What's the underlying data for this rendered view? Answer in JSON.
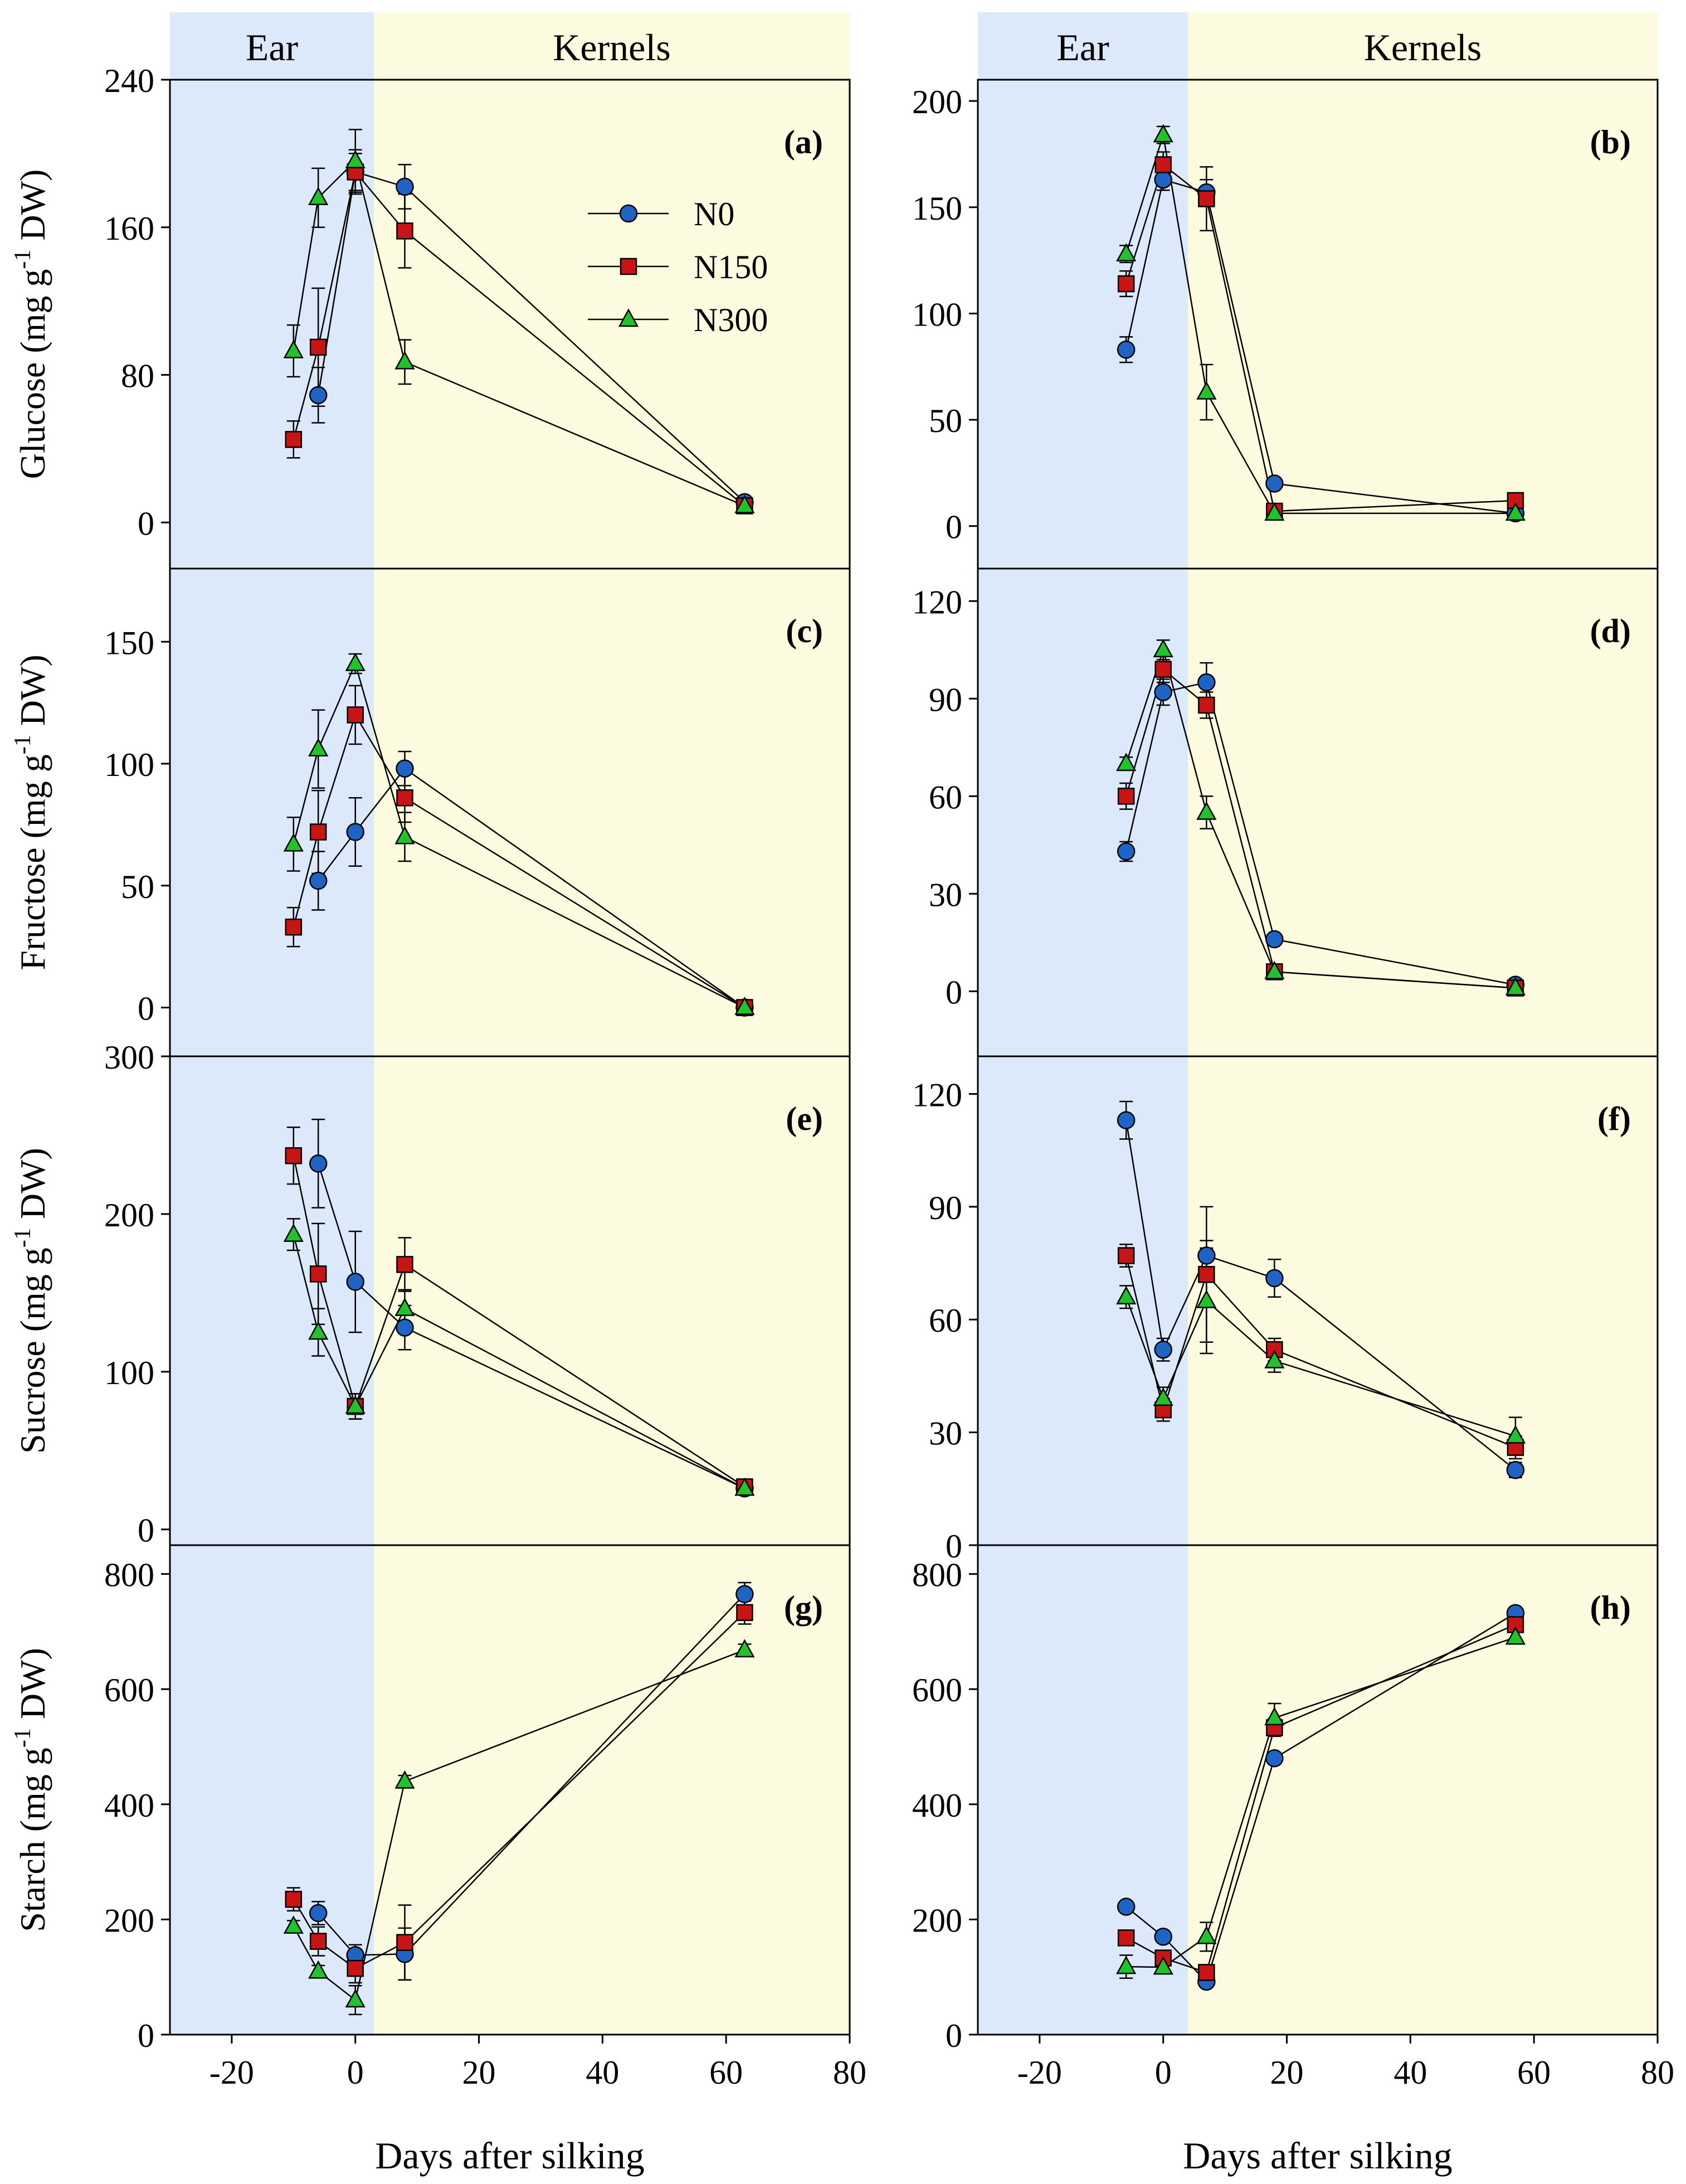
{
  "figure": {
    "region_labels": {
      "ear": "Ear",
      "kernels": "Kernels"
    },
    "x_axis_label": "Days after silking",
    "colors": {
      "ear_region": "#dbe9fb",
      "kernels_region": "#fcfbdf",
      "N0": "#1f63c4",
      "N150": "#c81414",
      "N300": "#22c32a"
    },
    "legend": [
      "N0",
      "N150",
      "N300"
    ],
    "markers": {
      "N0": "circle",
      "N150": "square",
      "N300": "triangle"
    }
  },
  "chart_data": [
    {
      "panel": "(a)",
      "type": "line",
      "column": "left",
      "row": 0,
      "ylabel": "Glucose (mg g-1 DW)",
      "xlim": [
        -30,
        80
      ],
      "ylim": [
        -25,
        240
      ],
      "xticks": [
        -20,
        0,
        20,
        40,
        60,
        80
      ],
      "yticks": [
        0,
        80,
        160,
        240
      ],
      "ear_kernel_boundary": 3,
      "show_legend": true,
      "series": [
        {
          "name": "N0",
          "x": [
            -6,
            0,
            8,
            63
          ],
          "y": [
            69,
            190,
            182,
            11
          ],
          "err": [
            15,
            10,
            12,
            2
          ]
        },
        {
          "name": "N150",
          "x": [
            -10,
            -6,
            0,
            8,
            63
          ],
          "y": [
            45,
            95,
            190,
            158,
            9
          ],
          "err": [
            10,
            32,
            12,
            20,
            2
          ]
        },
        {
          "name": "N300",
          "x": [
            -10,
            -6,
            0,
            8,
            63
          ],
          "y": [
            93,
            176,
            196,
            87,
            9
          ],
          "err": [
            14,
            16,
            17,
            12,
            2
          ]
        }
      ]
    },
    {
      "panel": "(b)",
      "type": "line",
      "column": "right",
      "row": 0,
      "ylabel": "",
      "xlim": [
        -30,
        80
      ],
      "ylim": [
        -20,
        210
      ],
      "xticks": [
        -20,
        0,
        20,
        40,
        60,
        80
      ],
      "yticks": [
        0,
        50,
        100,
        150,
        200
      ],
      "ear_kernel_boundary": 4,
      "show_legend": false,
      "series": [
        {
          "name": "N0",
          "x": [
            -6,
            0,
            7,
            18,
            57
          ],
          "y": [
            83,
            163,
            157,
            20,
            6
          ],
          "err": [
            6,
            5,
            6,
            2,
            1
          ]
        },
        {
          "name": "N150",
          "x": [
            -6,
            0,
            7,
            18,
            57
          ],
          "y": [
            114,
            170,
            154,
            7,
            12
          ],
          "err": [
            6,
            6,
            15,
            2,
            2
          ]
        },
        {
          "name": "N300",
          "x": [
            -6,
            0,
            7,
            18,
            57
          ],
          "y": [
            128,
            184,
            63,
            6,
            6
          ],
          "err": [
            4,
            4,
            13,
            1,
            1
          ]
        }
      ]
    },
    {
      "panel": "(c)",
      "type": "line",
      "column": "left",
      "row": 1,
      "ylabel": "Fructose (mg g-1 DW)",
      "xlim": [
        -30,
        80
      ],
      "ylim": [
        -20,
        180
      ],
      "xticks": [
        -20,
        0,
        20,
        40,
        60,
        80
      ],
      "yticks": [
        0,
        50,
        100,
        150
      ],
      "ear_kernel_boundary": 3,
      "show_legend": false,
      "series": [
        {
          "name": "N0",
          "x": [
            -6,
            0,
            8,
            63
          ],
          "y": [
            52,
            72,
            98,
            0
          ],
          "err": [
            12,
            14,
            7,
            1
          ]
        },
        {
          "name": "N150",
          "x": [
            -10,
            -6,
            0,
            8,
            63
          ],
          "y": [
            33,
            72,
            120,
            86,
            0
          ],
          "err": [
            8,
            17,
            12,
            10,
            1
          ]
        },
        {
          "name": "N300",
          "x": [
            -10,
            -6,
            0,
            8,
            63
          ],
          "y": [
            67,
            106,
            141,
            70,
            0
          ],
          "err": [
            11,
            16,
            4,
            10,
            1
          ]
        }
      ]
    },
    {
      "panel": "(d)",
      "type": "line",
      "column": "right",
      "row": 1,
      "ylabel": "",
      "xlim": [
        -30,
        80
      ],
      "ylim": [
        -20,
        130
      ],
      "xticks": [
        -20,
        0,
        20,
        40,
        60,
        80
      ],
      "yticks": [
        0,
        30,
        60,
        90,
        120
      ],
      "ear_kernel_boundary": 4,
      "show_legend": false,
      "series": [
        {
          "name": "N0",
          "x": [
            -6,
            0,
            7,
            18,
            57
          ],
          "y": [
            43,
            92,
            95,
            16,
            2
          ],
          "err": [
            3,
            4,
            6,
            1,
            1
          ]
        },
        {
          "name": "N150",
          "x": [
            -6,
            0,
            7,
            18,
            57
          ],
          "y": [
            60,
            99,
            88,
            6,
            1
          ],
          "err": [
            4,
            4,
            4,
            1,
            1
          ]
        },
        {
          "name": "N300",
          "x": [
            -6,
            0,
            7,
            18,
            57
          ],
          "y": [
            70,
            105,
            55,
            6,
            1
          ],
          "err": [
            2,
            3,
            5,
            1,
            1
          ]
        }
      ]
    },
    {
      "panel": "(e)",
      "type": "line",
      "column": "left",
      "row": 2,
      "ylabel": "Sucrose (mg g-1 DW)",
      "xlim": [
        -30,
        80
      ],
      "ylim": [
        -10,
        300
      ],
      "xticks": [
        -20,
        0,
        20,
        40,
        60,
        80
      ],
      "yticks": [
        0,
        100,
        200,
        300
      ],
      "ear_kernel_boundary": 3,
      "show_legend": false,
      "series": [
        {
          "name": "N0",
          "x": [
            -6,
            0,
            8,
            63
          ],
          "y": [
            232,
            157,
            128,
            26
          ],
          "err": [
            28,
            32,
            14,
            3
          ]
        },
        {
          "name": "N150",
          "x": [
            -10,
            -6,
            0,
            8,
            63
          ],
          "y": [
            237,
            162,
            78,
            168,
            27
          ],
          "err": [
            18,
            32,
            8,
            17,
            3
          ]
        },
        {
          "name": "N300",
          "x": [
            -10,
            -6,
            0,
            8,
            63
          ],
          "y": [
            187,
            125,
            78,
            140,
            26
          ],
          "err": [
            10,
            15,
            8,
            12,
            3
          ]
        }
      ]
    },
    {
      "panel": "(f)",
      "type": "line",
      "column": "right",
      "row": 2,
      "ylabel": "",
      "xlim": [
        -30,
        80
      ],
      "ylim": [
        0,
        130
      ],
      "xticks": [
        -20,
        0,
        20,
        40,
        60,
        80
      ],
      "yticks": [
        0,
        30,
        60,
        90,
        120
      ],
      "ear_kernel_boundary": 4,
      "show_legend": false,
      "series": [
        {
          "name": "N0",
          "x": [
            -6,
            0,
            7,
            18,
            57
          ],
          "y": [
            113,
            52,
            77,
            71,
            20
          ],
          "err": [
            5,
            3,
            4,
            5,
            2
          ]
        },
        {
          "name": "N150",
          "x": [
            -6,
            0,
            7,
            18,
            57
          ],
          "y": [
            77,
            36,
            72,
            52,
            26
          ],
          "err": [
            3,
            3,
            18,
            3,
            3
          ]
        },
        {
          "name": "N300",
          "x": [
            -6,
            0,
            7,
            18,
            57
          ],
          "y": [
            66,
            39,
            65,
            49,
            29
          ],
          "err": [
            3,
            3,
            14,
            3,
            5
          ]
        }
      ]
    },
    {
      "panel": "(g)",
      "type": "line",
      "column": "left",
      "row": 3,
      "ylabel": "Starch (mg g-1 DW)",
      "xlim": [
        -30,
        80
      ],
      "ylim": [
        0,
        850
      ],
      "xticks": [
        -20,
        0,
        20,
        40,
        60,
        80
      ],
      "yticks": [
        0,
        200,
        400,
        600,
        800
      ],
      "ear_kernel_boundary": 3,
      "show_legend": false,
      "series": [
        {
          "name": "N0",
          "x": [
            -6,
            0,
            8,
            63
          ],
          "y": [
            211,
            138,
            140,
            765
          ],
          "err": [
            20,
            18,
            45,
            20
          ]
        },
        {
          "name": "N150",
          "x": [
            -10,
            -6,
            0,
            8,
            63
          ],
          "y": [
            235,
            162,
            115,
            160,
            733
          ],
          "err": [
            20,
            25,
            25,
            65,
            20
          ]
        },
        {
          "name": "N300",
          "x": [
            -10,
            -6,
            0,
            8,
            63
          ],
          "y": [
            188,
            110,
            60,
            440,
            668
          ],
          "err": [
            10,
            10,
            25,
            10,
            10
          ]
        }
      ]
    },
    {
      "panel": "(h)",
      "type": "line",
      "column": "right",
      "row": 3,
      "ylabel": "",
      "xlim": [
        -30,
        80
      ],
      "ylim": [
        0,
        850
      ],
      "xticks": [
        -20,
        0,
        20,
        40,
        60,
        80
      ],
      "yticks": [
        0,
        200,
        400,
        600,
        800
      ],
      "ear_kernel_boundary": 4,
      "show_legend": false,
      "series": [
        {
          "name": "N0",
          "x": [
            -6,
            0,
            7,
            18,
            57
          ],
          "y": [
            222,
            170,
            92,
            480,
            732
          ],
          "err": [
            8,
            10,
            10,
            10,
            10
          ]
        },
        {
          "name": "N150",
          "x": [
            -6,
            0,
            7,
            18,
            57
          ],
          "y": [
            168,
            133,
            108,
            533,
            712
          ],
          "err": [
            8,
            8,
            10,
            15,
            12
          ]
        },
        {
          "name": "N300",
          "x": [
            -6,
            0,
            7,
            18,
            57
          ],
          "y": [
            118,
            117,
            170,
            550,
            690
          ],
          "err": [
            20,
            10,
            25,
            25,
            10
          ]
        }
      ]
    }
  ]
}
